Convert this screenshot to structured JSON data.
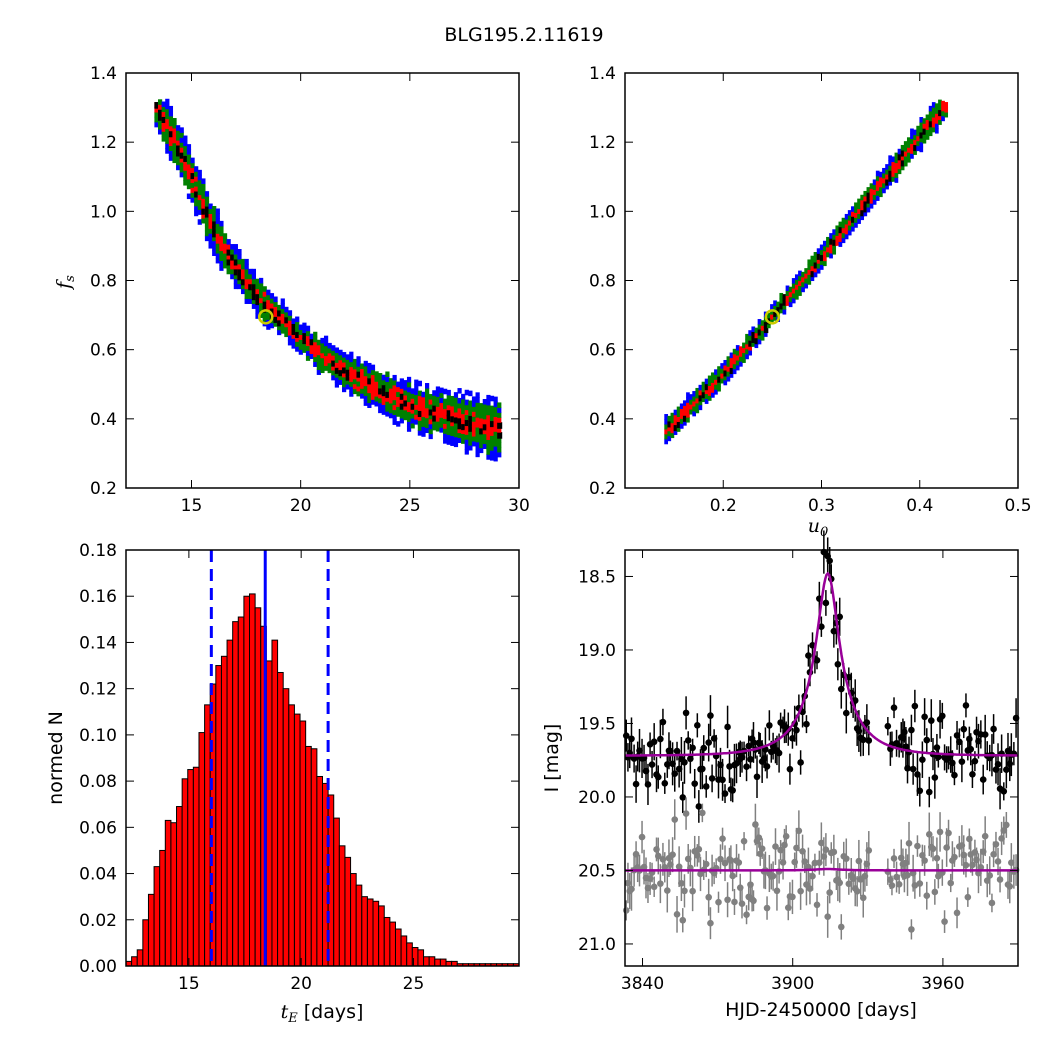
{
  "figure": {
    "title": "BLG195.2.11619"
  },
  "chart_data": [
    {
      "id": "fs_vs_tE",
      "type": "heatmap",
      "title": "",
      "xlabel": "",
      "ylabel": "f_s",
      "xlim": [
        12,
        30
      ],
      "ylim": [
        0.2,
        1.4
      ],
      "xticks": [
        "15",
        "20",
        "25",
        "30"
      ],
      "yticks": [
        "0.2",
        "0.4",
        "0.6",
        "0.8",
        "1.0",
        "1.2",
        "1.4"
      ],
      "levels": [
        {
          "name": "outer",
          "color": "#0000ff"
        },
        {
          "name": "middle",
          "color": "#008000"
        },
        {
          "name": "inner",
          "color": "#ff0000"
        },
        {
          "name": "best-chains",
          "color": "#000000"
        }
      ],
      "ridge": [
        [
          13.3,
          1.3
        ],
        [
          14.5,
          1.15
        ],
        [
          15.5,
          1.0
        ],
        [
          16.5,
          0.87
        ],
        [
          18.0,
          0.74
        ],
        [
          19.5,
          0.65
        ],
        [
          21.0,
          0.57
        ],
        [
          23.0,
          0.49
        ],
        [
          25.0,
          0.43
        ],
        [
          27.0,
          0.39
        ],
        [
          29.0,
          0.36
        ]
      ],
      "best_fit": {
        "x": 18.4,
        "y": 0.695,
        "color": "#cccc00"
      }
    },
    {
      "id": "fs_vs_u0",
      "type": "heatmap",
      "title": "",
      "xlabel": "u_0",
      "ylabel": "",
      "xlim": [
        0.1,
        0.5
      ],
      "ylim": [
        0.2,
        1.4
      ],
      "xticks": [
        "0.2",
        "0.3",
        "0.4",
        "0.5"
      ],
      "yticks": [
        "0.2",
        "0.4",
        "0.6",
        "0.8",
        "1.0",
        "1.2",
        "1.4"
      ],
      "levels": [
        {
          "name": "outer",
          "color": "#0000ff"
        },
        {
          "name": "middle",
          "color": "#008000"
        },
        {
          "name": "inner",
          "color": "#ff0000"
        },
        {
          "name": "best-chains",
          "color": "#000000"
        }
      ],
      "ridge": [
        [
          0.14,
          0.355
        ],
        [
          0.2,
          0.525
        ],
        [
          0.25,
          0.695
        ],
        [
          0.3,
          0.865
        ],
        [
          0.35,
          1.04
        ],
        [
          0.4,
          1.215
        ],
        [
          0.425,
          1.3
        ]
      ],
      "best_fit": {
        "x": 0.25,
        "y": 0.695,
        "color": "#cccc00"
      }
    },
    {
      "id": "tE_histogram",
      "type": "bar",
      "title": "",
      "xlabel": "t_E [days]",
      "ylabel": "normed N",
      "xlim": [
        12.2,
        29.7
      ],
      "ylim": [
        0,
        0.18
      ],
      "xticks": [
        "15",
        "20",
        "25"
      ],
      "yticks": [
        "0.00",
        "0.02",
        "0.04",
        "0.06",
        "0.08",
        "0.10",
        "0.12",
        "0.14",
        "0.16",
        "0.18"
      ],
      "bin_start": 12.2,
      "bin_width": 0.25,
      "values": [
        0.002,
        0.004,
        0.007,
        0.02,
        0.031,
        0.043,
        0.05,
        0.063,
        0.062,
        0.069,
        0.081,
        0.085,
        0.086,
        0.101,
        0.113,
        0.122,
        0.13,
        0.134,
        0.141,
        0.149,
        0.151,
        0.16,
        0.161,
        0.155,
        0.147,
        0.132,
        0.141,
        0.127,
        0.12,
        0.113,
        0.109,
        0.106,
        0.095,
        0.094,
        0.082,
        0.079,
        0.074,
        0.064,
        0.052,
        0.047,
        0.04,
        0.035,
        0.03,
        0.029,
        0.028,
        0.026,
        0.021,
        0.019,
        0.016,
        0.013,
        0.01,
        0.008,
        0.007,
        0.004,
        0.004,
        0.003,
        0.003,
        0.002,
        0.002,
        0.001,
        0.001,
        0.001,
        0.001,
        0.001,
        0.001,
        0.001,
        0.001,
        0.001,
        0.001,
        0.001
      ],
      "bar_color": "#ff0000",
      "vlines": [
        {
          "x": 18.4,
          "style": "solid",
          "color": "#0000ff"
        },
        {
          "x": 16.0,
          "style": "dashed",
          "color": "#0000ff"
        },
        {
          "x": 21.2,
          "style": "dashed",
          "color": "#0000ff"
        }
      ]
    },
    {
      "id": "light_curve",
      "type": "scatter",
      "title": "",
      "xlabel": "HJD-2450000 [days]",
      "ylabel": "I [mag]",
      "xlim": [
        3833,
        3990
      ],
      "ylim": [
        21.15,
        18.32
      ],
      "xticks": [
        "3840",
        "3900",
        "3960"
      ],
      "yticks": [
        "18.5",
        "19.0",
        "19.5",
        "20.0",
        "20.5",
        "21.0"
      ],
      "series": [
        {
          "id": "event",
          "color": "#000000",
          "baseline": 19.72,
          "scatter": 0.13
        },
        {
          "id": "comparison",
          "color": "#808080",
          "baseline": 20.5,
          "scatter": 0.16
        }
      ],
      "model": {
        "color": "#990099",
        "t0": 3914,
        "peak_mag": 18.48,
        "base_mag": 19.72,
        "u0": 0.25,
        "tE": 18.4,
        "offset_base": 20.5,
        "offset_amp": 0.01
      }
    }
  ]
}
